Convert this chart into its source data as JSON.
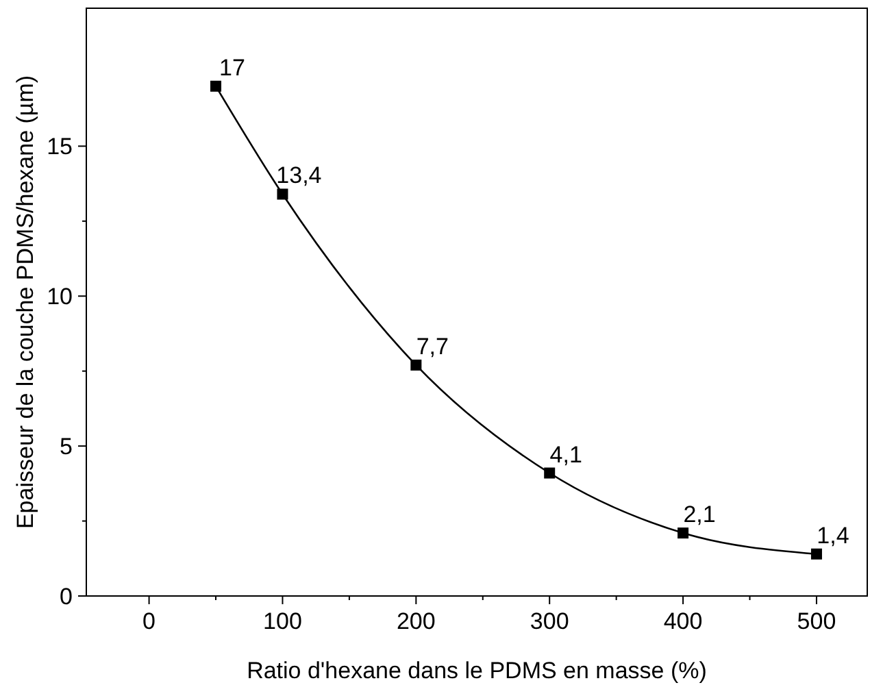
{
  "chart_data": {
    "type": "line",
    "xlabel": "Ratio d'hexane dans le PDMS en masse (%)",
    "ylabel": "Epaisseur de la couche PDMS/hexane (µm)",
    "x": [
      50,
      100,
      200,
      300,
      400,
      500
    ],
    "series": [
      {
        "color": "#000000",
        "values": [
          17,
          13.4,
          7.7,
          4.1,
          2.1,
          1.4
        ],
        "value_labels": [
          "17",
          "13,4",
          "7,7",
          "4,1",
          "2,1",
          "1,4"
        ]
      }
    ],
    "marker": "square",
    "line_style": "solid",
    "xlim": [
      -47,
      538
    ],
    "xticks": [
      0,
      100,
      200,
      300,
      400,
      500
    ],
    "ylim": [
      0,
      19.6
    ],
    "yticks": [
      0,
      5,
      10,
      15
    ],
    "grid": false
  }
}
